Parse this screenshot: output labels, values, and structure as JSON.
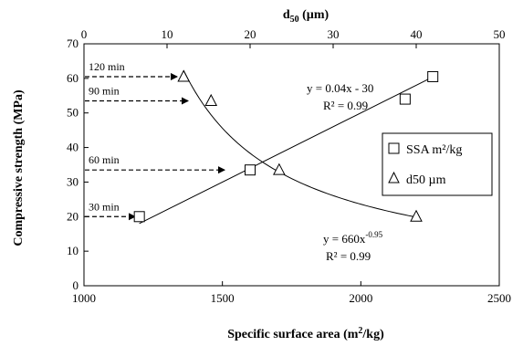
{
  "chart_data": {
    "type": "scatter",
    "xlabel": "Specific surface area (m²/kg)",
    "x2label": "d50 (µm)",
    "ylabel": "Compressive strength (MPa)",
    "xlim": [
      1000,
      2500
    ],
    "x2lim": [
      0,
      50
    ],
    "ylim": [
      0,
      70
    ],
    "xticks": [
      "1000",
      "1500",
      "2000",
      "2500"
    ],
    "x2ticks": [
      "0",
      "10",
      "20",
      "30",
      "40",
      "50"
    ],
    "yticks": [
      "0",
      "10",
      "20",
      "30",
      "40",
      "50",
      "60",
      "70"
    ],
    "grid": false,
    "legend_position": "right",
    "series": [
      {
        "name": "SSA m²/kg",
        "axis": "bottom",
        "marker": "square",
        "x": [
          1200,
          1600,
          2160,
          2260
        ],
        "y": [
          20,
          33.5,
          54,
          60.5
        ],
        "fit": {
          "kind": "linear",
          "slope": 0.04,
          "intercept": -30,
          "x_range": [
            1200,
            2260
          ],
          "equation": "y = 0.04x - 30",
          "r2": "R² = 0.99"
        }
      },
      {
        "name": "d50 µm",
        "axis": "top",
        "marker": "triangle",
        "x": [
          12,
          15.3,
          23.5,
          40
        ],
        "y": [
          60.5,
          53.5,
          33.5,
          20
        ],
        "fit": {
          "kind": "power",
          "a": 660,
          "b": -0.95,
          "x_range": [
            12,
            40
          ],
          "equation": "y = 660x",
          "exponent": "-0.95",
          "r2": "R² = 0.99"
        }
      }
    ],
    "annotations": [
      {
        "label": "120 min",
        "y": 60.5
      },
      {
        "label": "90 min",
        "y": 53.5
      },
      {
        "label": "60 min",
        "y": 33.5
      },
      {
        "label": "30 min",
        "y": 20
      }
    ]
  }
}
